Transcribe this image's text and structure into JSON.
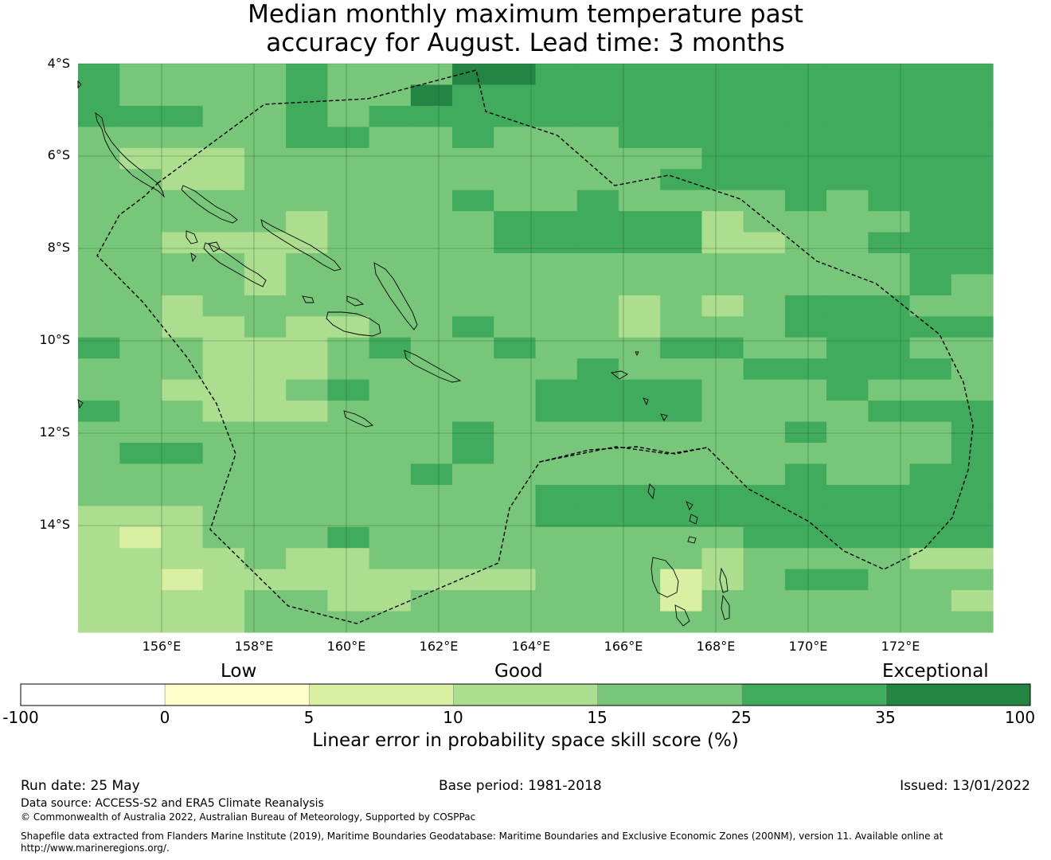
{
  "title_line1": "Median monthly maximum temperature past",
  "title_line2": "accuracy for August. Lead time: 3 months",
  "lat_labels": [
    "4°S",
    "6°S",
    "8°S",
    "10°S",
    "12°S",
    "14°S"
  ],
  "lon_labels": [
    "156°E",
    "158°E",
    "160°E",
    "162°E",
    "164°E",
    "166°E",
    "168°E",
    "170°E",
    "172°E"
  ],
  "colorbar": {
    "categories": [
      "Low",
      "Good",
      "Exceptional"
    ],
    "ticks": [
      "-100",
      "0",
      "5",
      "10",
      "15",
      "25",
      "35",
      "100"
    ],
    "colors": [
      "#ffffff",
      "#ffffcc",
      "#d9f0a3",
      "#addd8e",
      "#78c679",
      "#41ab5d",
      "#238443"
    ],
    "label": "Linear error in probability space skill score (%)"
  },
  "footer": {
    "run_date": "Run date: 25 May",
    "base_period": "Base period: 1981-2018",
    "issued": "Issued: 13/01/2022",
    "data_source": "Data source: ACCESS-S2 and ERA5 Climate Reanalysis",
    "copyright": "© Commonwealth of Australia 2022, Australian Bureau of Meteorology, Supported by COSPPac",
    "shapefile_line1": "Shapefile data extracted from Flanders Marine Institute (2019), Maritime Boundaries Geodatabase: Maritime Boundaries and Exclusive Economic Zones (200NM), version 11. Available online at",
    "shapefile_line2": "http://www.marineregions.org/."
  },
  "map_data": {
    "lon_range": [
      154.2,
      174.0
    ],
    "lat_range": [
      -4.0,
      -16.3
    ],
    "cell_size_deg": 0.83,
    "skill_grid_classes": [
      "5444454446655555555555",
      "5444454465555555555555",
      "5554454555555555555555",
      "4444455445444555555555",
      "4333444444444445555555",
      "4433444444444455555555",
      "4444444445445444454555",
      "4444434444555553444455",
      "4433334444555553344555",
      "4444344444444444444455",
      "4444344444444444444454",
      "4434444444444343455544",
      "4433433445444344455555",
      "5443334544544455445544",
      "4443334444445444555554",
      "4433345444455554445444",
      "5443334444455554444555",
      "4444444445444444454445",
      "4554444445444444444445",
      "4444444454444444454455",
      "4444444444455555555555",
      "3334444444455555555555",
      "3234445444444444555555",
      "3333433444444443444433",
      "3323333333344423455444",
      "3333443344444424444443",
      "3333444444444444444444"
    ]
  }
}
